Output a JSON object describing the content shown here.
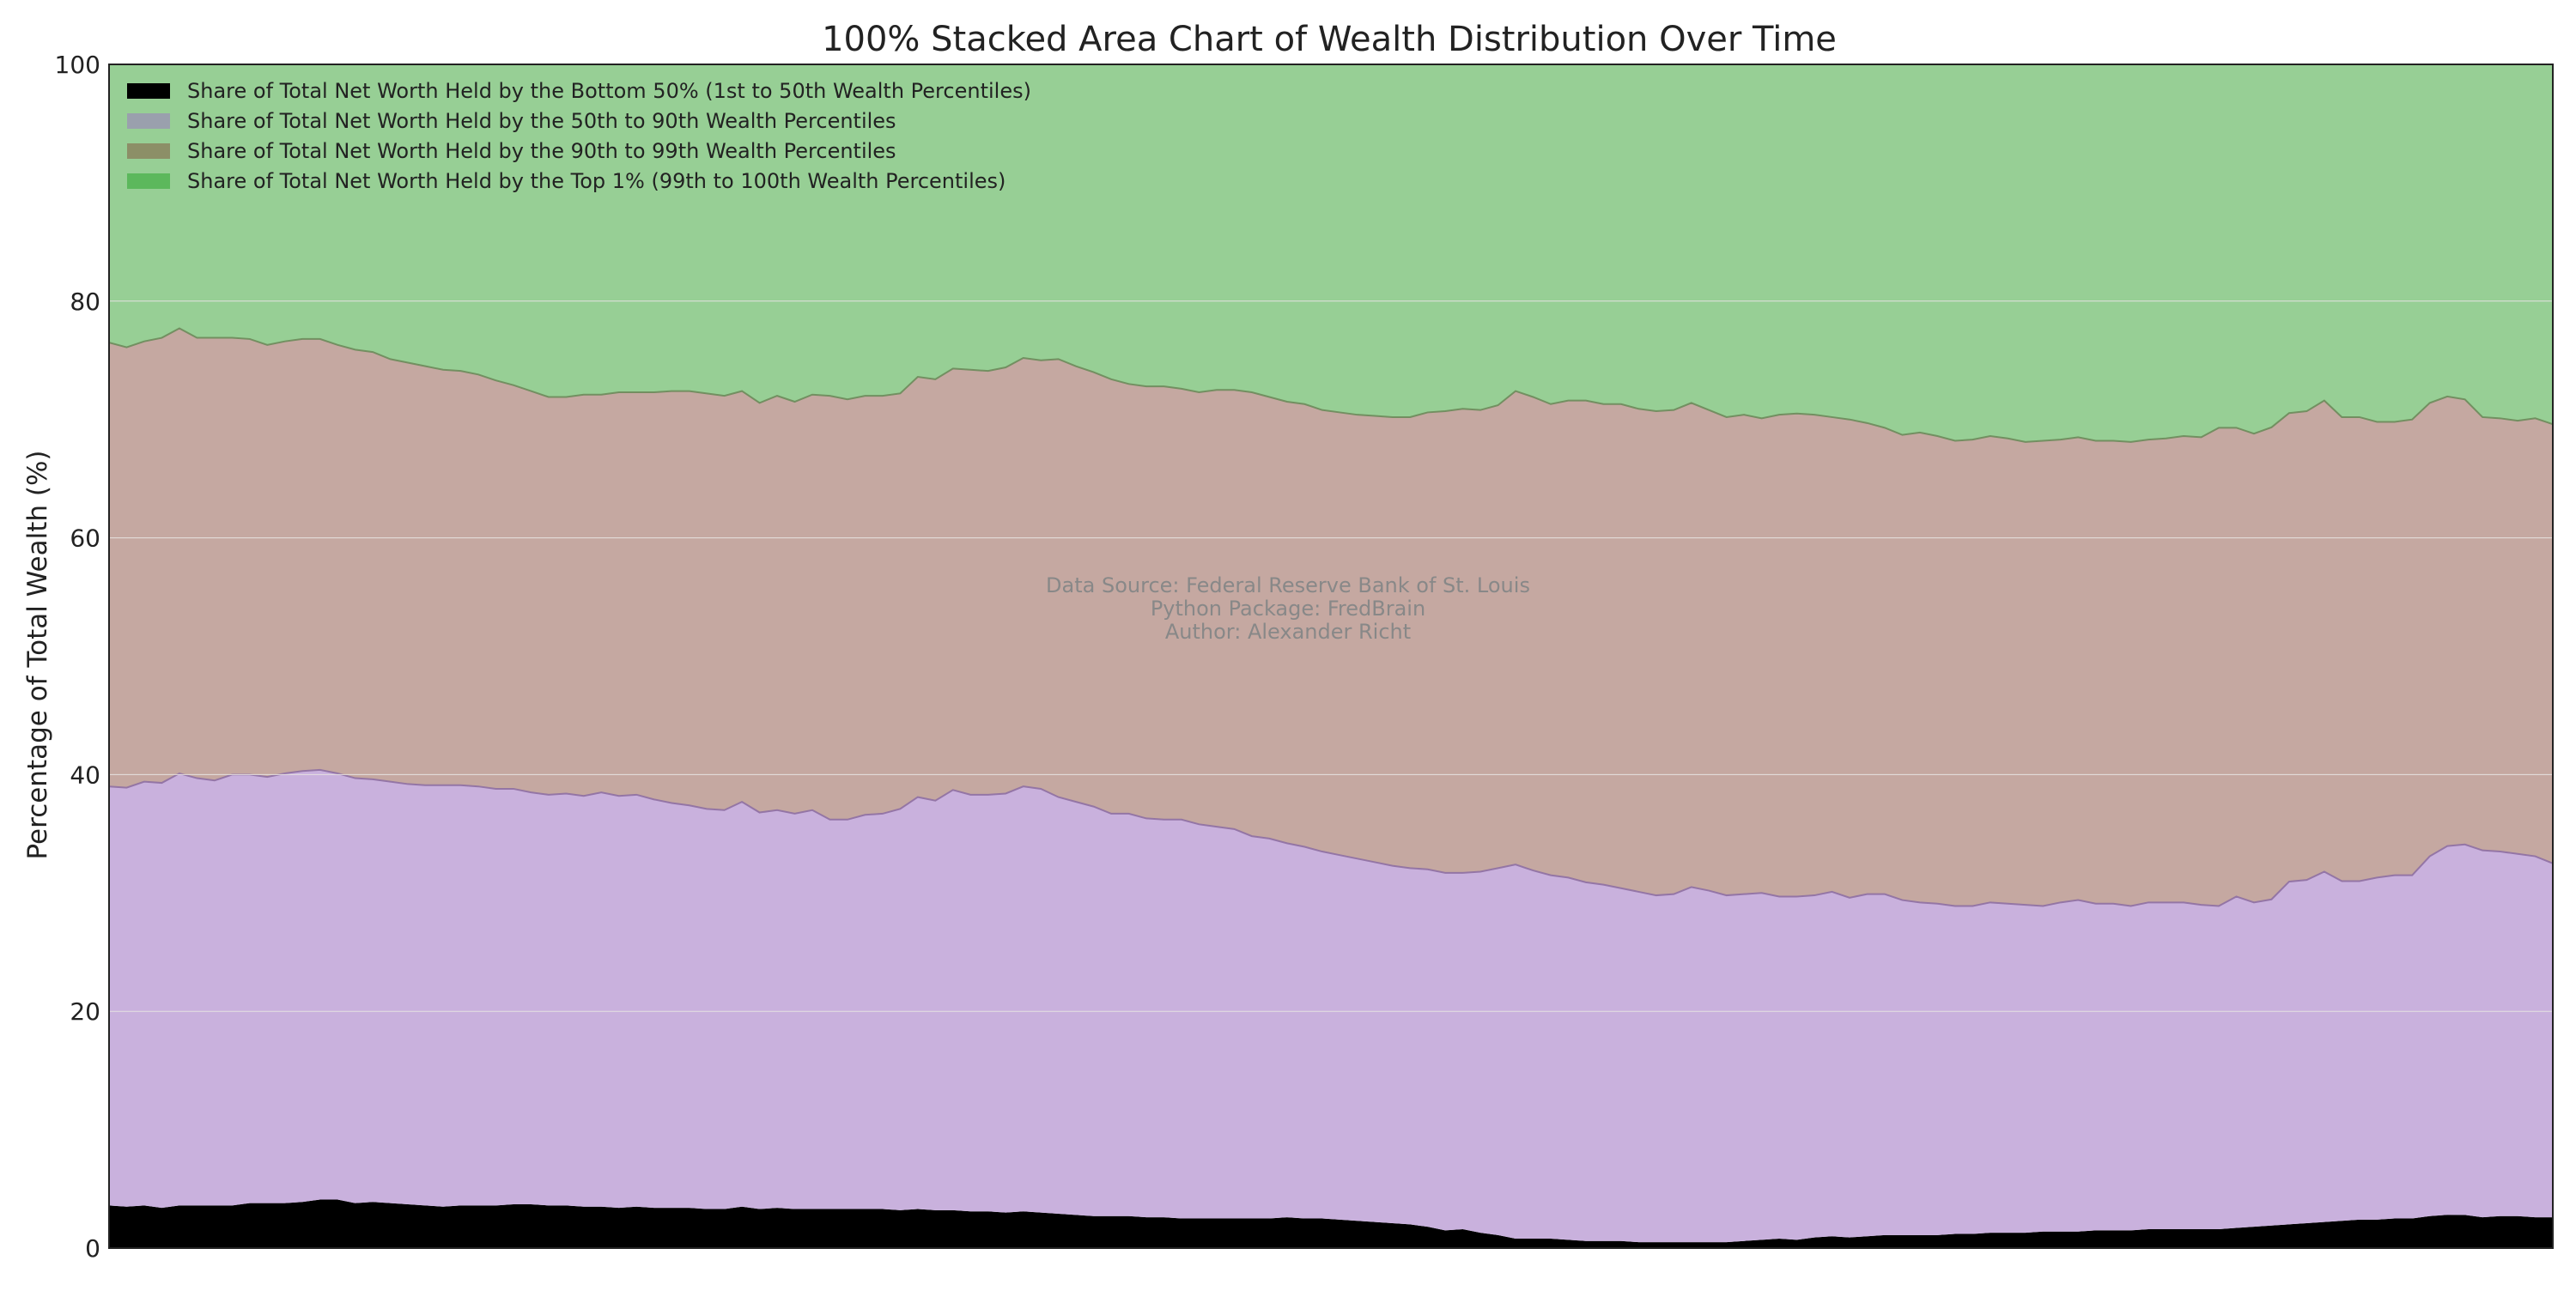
{
  "chart_data": {
    "type": "area",
    "stacked": true,
    "normalized_to_100": true,
    "title": "100% Stacked Area Chart of Wealth Distribution Over Time",
    "ylabel": "Percentage of Total Wealth (%)",
    "xlabel": "",
    "x_tick_labels_shown": false,
    "ylim": [
      0,
      100
    ],
    "y_ticks": [
      0,
      20,
      40,
      60,
      80,
      100
    ],
    "grid": true,
    "legend_position": "top-left",
    "annotation": [
      "Data Source: Federal Reserve Bank of St. Louis",
      "Python Package: FredBrain",
      "Author: Alexander Richt"
    ],
    "colors": {
      "bottom50": "#000000",
      "p50_90": "#c9b1dd",
      "p50_90_edge": "#8e6fa2",
      "p90_99": "#c5a8a1",
      "p90_99_edge": "#6b8a5a",
      "top1": "#97cf95",
      "legend_p50_90": "#9aa0ad",
      "legend_p90_99": "#8c8f67",
      "legend_top1": "#5cb85c",
      "annotation_text": "#888888",
      "grid": "#e6e1e1"
    },
    "series": [
      {
        "name": "Share of Total Net Worth Held by the Bottom 50% (1st to 50th Wealth Percentiles)",
        "color": "#000000",
        "values": [
          3.6,
          3.5,
          3.6,
          3.4,
          3.6,
          3.6,
          3.6,
          3.6,
          3.8,
          3.8,
          3.8,
          3.9,
          4.1,
          4.1,
          3.8,
          3.9,
          3.8,
          3.7,
          3.6,
          3.5,
          3.6,
          3.6,
          3.6,
          3.7,
          3.7,
          3.6,
          3.6,
          3.5,
          3.5,
          3.4,
          3.5,
          3.4,
          3.4,
          3.4,
          3.3,
          3.3,
          3.5,
          3.3,
          3.4,
          3.3,
          3.3,
          3.3,
          3.3,
          3.3,
          3.3,
          3.2,
          3.3,
          3.2,
          3.2,
          3.1,
          3.1,
          3.0,
          3.1,
          3.0,
          2.9,
          2.8,
          2.7,
          2.7,
          2.7,
          2.6,
          2.6,
          2.5,
          2.5,
          2.5,
          2.5,
          2.5,
          2.5,
          2.6,
          2.5,
          2.5,
          2.4,
          2.3,
          2.2,
          2.1,
          2.0,
          1.8,
          1.5,
          1.6,
          1.3,
          1.1,
          0.8,
          0.8,
          0.8,
          0.7,
          0.6,
          0.6,
          0.6,
          0.5,
          0.5,
          0.5,
          0.5,
          0.5,
          0.5,
          0.6,
          0.7,
          0.8,
          0.7,
          0.9,
          1.0,
          0.9,
          1.0,
          1.1,
          1.1,
          1.1,
          1.1,
          1.2,
          1.2,
          1.3,
          1.3,
          1.3,
          1.4,
          1.4,
          1.4,
          1.5,
          1.5,
          1.5,
          1.6,
          1.6,
          1.6,
          1.6,
          1.6,
          1.7,
          1.8,
          1.9,
          2.0,
          2.1,
          2.2,
          2.3,
          2.4,
          2.4,
          2.5,
          2.5,
          2.7,
          2.8,
          2.8,
          2.6,
          2.7,
          2.7,
          2.6,
          2.6
        ]
      },
      {
        "name": "Share of Total Net Worth Held by the 50th to 90th Wealth Percentiles",
        "color": "#c9b1dd",
        "legend_color": "#9aa0ad",
        "values": [
          35.4,
          35.4,
          35.8,
          35.9,
          36.5,
          36.1,
          35.9,
          36.4,
          36.2,
          36.0,
          36.3,
          36.4,
          36.3,
          36.0,
          35.9,
          35.7,
          35.6,
          35.5,
          35.5,
          35.6,
          35.5,
          35.4,
          35.2,
          35.1,
          34.8,
          34.7,
          34.8,
          34.7,
          35.0,
          34.8,
          34.8,
          34.5,
          34.2,
          34.0,
          33.8,
          33.7,
          34.2,
          33.5,
          33.6,
          33.4,
          33.7,
          32.9,
          32.9,
          33.3,
          33.4,
          33.9,
          34.8,
          34.6,
          35.5,
          35.2,
          35.2,
          35.4,
          35.9,
          35.8,
          35.2,
          34.9,
          34.6,
          34.0,
          34.0,
          33.7,
          33.6,
          33.7,
          33.3,
          33.1,
          32.9,
          32.3,
          32.1,
          31.6,
          31.4,
          31.0,
          30.8,
          30.6,
          30.4,
          30.2,
          30.1,
          30.2,
          30.2,
          30.1,
          30.5,
          31.0,
          31.6,
          31.1,
          30.7,
          30.6,
          30.3,
          30.1,
          29.8,
          29.6,
          29.3,
          29.4,
          30.0,
          29.7,
          29.3,
          29.3,
          29.3,
          28.9,
          29.0,
          28.9,
          29.1,
          28.7,
          28.9,
          28.8,
          28.3,
          28.1,
          28.0,
          27.7,
          27.7,
          27.9,
          27.8,
          27.7,
          27.5,
          27.8,
          28.0,
          27.6,
          27.6,
          27.4,
          27.6,
          27.6,
          27.6,
          27.4,
          27.3,
          28.0,
          27.4,
          27.5,
          28.9,
          29.0,
          29.6,
          28.7,
          28.6,
          28.9,
          29.0,
          29.0,
          30.4,
          31.1,
          31.3,
          31.0,
          30.8,
          30.6,
          30.5,
          29.9
        ]
      },
      {
        "name": "Share of Total Net Worth Held by the 90th to 99th Wealth Percentiles",
        "color": "#c5a8a1",
        "legend_color": "#8c8f67",
        "values": [
          37.5,
          37.2,
          37.2,
          37.6,
          37.6,
          37.2,
          37.4,
          36.9,
          36.8,
          36.5,
          36.5,
          36.5,
          36.4,
          36.2,
          36.2,
          36.1,
          35.7,
          35.6,
          35.4,
          35.1,
          35.0,
          34.8,
          34.5,
          34.1,
          33.9,
          33.6,
          33.5,
          33.9,
          33.6,
          34.1,
          34.0,
          34.4,
          34.8,
          35.0,
          35.1,
          35.0,
          34.7,
          34.6,
          35.0,
          34.8,
          35.1,
          35.8,
          35.5,
          35.4,
          35.3,
          35.1,
          35.5,
          35.6,
          35.6,
          35.9,
          35.8,
          36.0,
          36.2,
          36.2,
          37.0,
          36.8,
          36.7,
          36.7,
          36.3,
          36.5,
          36.6,
          36.4,
          36.5,
          36.9,
          37.1,
          37.5,
          37.3,
          37.3,
          37.4,
          37.3,
          37.4,
          37.5,
          37.7,
          37.9,
          38.1,
          38.6,
          39.0,
          39.2,
          39.0,
          39.1,
          40.0,
          40.0,
          39.8,
          40.3,
          40.7,
          40.6,
          40.9,
          40.8,
          40.9,
          40.9,
          40.9,
          40.6,
          40.4,
          40.5,
          40.1,
          40.7,
          40.8,
          40.6,
          40.1,
          40.4,
          39.8,
          39.4,
          39.3,
          39.7,
          39.5,
          39.3,
          39.4,
          39.4,
          39.3,
          39.1,
          39.3,
          39.1,
          39.1,
          39.1,
          39.1,
          39.2,
          39.1,
          39.2,
          39.4,
          39.5,
          40.4,
          39.6,
          39.6,
          39.8,
          39.5,
          39.6,
          39.8,
          39.2,
          39.2,
          38.5,
          38.3,
          38.5,
          38.3,
          37.9,
          37.6,
          36.6,
          36.6,
          36.6,
          37.0,
          37.1
        ]
      },
      {
        "name": "Share of Total Net Worth Held by the Top 1% (99th to 100th Wealth Percentiles)",
        "color": "#97cf95",
        "legend_color": "#5cb85c",
        "values": [
          23.5,
          23.9,
          23.4,
          23.1,
          22.3,
          23.1,
          23.1,
          23.1,
          23.2,
          23.7,
          23.4,
          23.2,
          23.2,
          23.7,
          24.1,
          24.3,
          24.9,
          25.2,
          25.5,
          25.8,
          25.9,
          26.2,
          26.7,
          27.1,
          27.6,
          28.1,
          28.1,
          27.9,
          27.9,
          27.7,
          27.7,
          27.7,
          27.6,
          27.6,
          27.8,
          28.0,
          27.6,
          28.6,
          28.0,
          28.5,
          27.9,
          28.0,
          28.3,
          28.0,
          28.0,
          27.8,
          26.4,
          26.6,
          25.7,
          25.8,
          25.9,
          25.6,
          24.8,
          25.0,
          24.9,
          25.5,
          26.0,
          26.6,
          27.0,
          27.2,
          27.2,
          27.4,
          27.7,
          27.5,
          27.5,
          27.7,
          28.1,
          28.5,
          28.7,
          29.2,
          29.4,
          29.6,
          29.7,
          29.8,
          29.8,
          29.4,
          29.3,
          29.1,
          29.2,
          28.8,
          27.6,
          28.1,
          28.7,
          28.4,
          28.4,
          28.7,
          28.7,
          29.1,
          29.3,
          29.2,
          28.6,
          29.2,
          29.8,
          29.6,
          29.9,
          29.6,
          29.5,
          29.6,
          29.8,
          30.0,
          30.3,
          30.7,
          31.3,
          31.1,
          31.4,
          31.8,
          31.7,
          31.4,
          31.6,
          31.9,
          31.8,
          31.7,
          31.5,
          31.8,
          31.8,
          31.9,
          31.7,
          31.6,
          31.4,
          31.5,
          30.7,
          30.7,
          31.2,
          30.6,
          29.4,
          29.3,
          28.4,
          29.8,
          29.8,
          30.2,
          30.2,
          30.0,
          28.6,
          28.0,
          28.3,
          29.8,
          29.9,
          30.1,
          29.9,
          30.4
        ]
      }
    ]
  }
}
